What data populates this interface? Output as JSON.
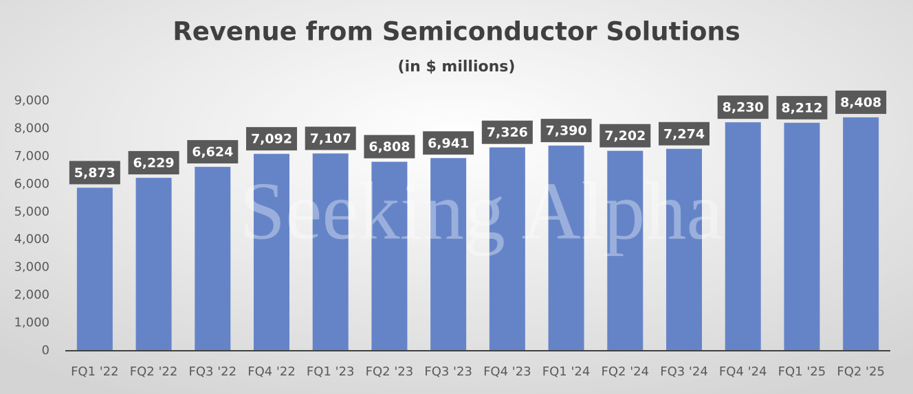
{
  "chart_data": {
    "type": "bar",
    "title": "Revenue from Semiconductor Solutions",
    "subtitle": "(in $ millions)",
    "watermark": "Seeking Alpha",
    "categories": [
      "FQ1 '22",
      "FQ2 '22",
      "FQ3 '22",
      "FQ4 '22",
      "FQ1 '23",
      "FQ2 '23",
      "FQ3 '23",
      "FQ4 '23",
      "FQ1 '24",
      "FQ2 '24",
      "FQ3 '24",
      "FQ4 '24",
      "FQ1 '25",
      "FQ2 '25"
    ],
    "values": [
      5873,
      6229,
      6624,
      7092,
      7107,
      6808,
      6941,
      7326,
      7390,
      7202,
      7274,
      8230,
      8212,
      8408
    ],
    "value_labels": [
      "5,873",
      "6,229",
      "6,624",
      "7,092",
      "7,107",
      "6,808",
      "6,941",
      "7,326",
      "7,390",
      "7,202",
      "7,274",
      "8,230",
      "8,212",
      "8,408"
    ],
    "color": "#6584c8",
    "ylim": [
      0,
      9000
    ],
    "yticks": [
      0,
      {
        "value": 1000,
        "label": "1,000"
      },
      {
        "value": 2000,
        "label": "2,000"
      },
      {
        "value": 3000,
        "label": "3,000"
      },
      {
        "value": 4000,
        "label": "4,000"
      },
      {
        "value": 5000,
        "label": "5,000"
      },
      {
        "value": 6000,
        "label": "6,000"
      },
      {
        "value": 7000,
        "label": "7,000"
      },
      {
        "value": 8000,
        "label": "8,000"
      },
      {
        "value": 9000,
        "label": "9,000"
      }
    ],
    "grid": false
  }
}
